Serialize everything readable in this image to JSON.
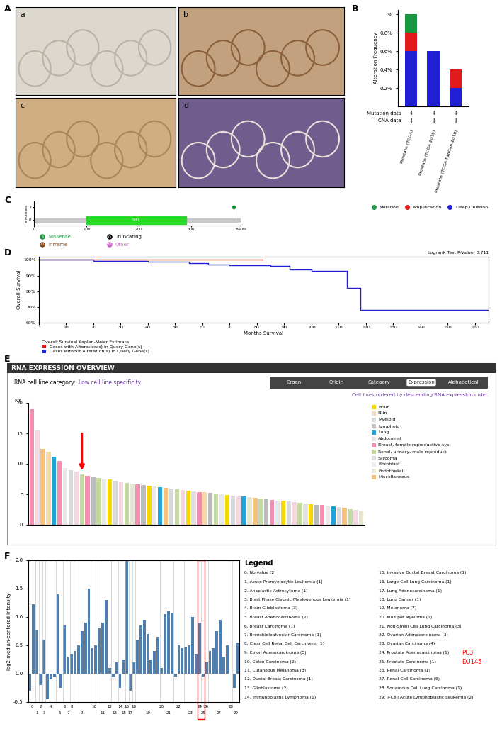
{
  "image_panel": {
    "panel": "A",
    "labels": [
      "a",
      "b",
      "c",
      "d"
    ]
  },
  "chart_data": [
    {
      "panel": "B",
      "type": "bar",
      "stacked": true,
      "y_label": "Alteration Frequency",
      "categories": [
        "Prostate (TCGA)",
        "Prostate (TCGA 2015)",
        "Prostate (TCGA PanCan 2018)"
      ],
      "series": [
        {
          "name": "Deep Deletion",
          "color": "#1f1fd6",
          "values": [
            0.6,
            0.6,
            0.2
          ]
        },
        {
          "name": "Amplification",
          "color": "#e31a1c",
          "values": [
            0.2,
            0,
            0.2
          ]
        },
        {
          "name": "Mutation",
          "color": "#1a9641",
          "values": [
            0.2,
            0,
            0
          ]
        }
      ],
      "ylim": [
        0,
        1.05
      ],
      "yticks": [
        {
          "value": 0.2,
          "label": "0.2%"
        },
        {
          "value": 0.4,
          "label": "0.4%"
        },
        {
          "value": 0.6,
          "label": "0.6%"
        },
        {
          "value": 0.8,
          "label": "0.8%"
        },
        {
          "value": 1,
          "label": "1%"
        }
      ],
      "rows": [
        {
          "label": "Mutation data",
          "marks": [
            "+",
            "+",
            "+"
          ]
        },
        {
          "label": "CNA data",
          "marks": [
            "+",
            "+",
            "+"
          ]
        }
      ]
    },
    {
      "panel": "C",
      "type": "lollipop",
      "y_label": "# Mutations",
      "xlim": [
        0,
        394
      ],
      "xticks": [
        0,
        100,
        200,
        300,
        {
          "value": 394,
          "label": "394aa"
        }
      ],
      "ylim": [
        -0.4,
        1.4
      ],
      "yticks": [
        0,
        1
      ],
      "domains": [
        {
          "name": "SH3",
          "start": 100,
          "end": 290,
          "color": "#2bd92b"
        }
      ],
      "mutations": {
        "x": [
          381
        ],
        "values": [
          1
        ],
        "color": "#1a9641"
      },
      "legend_items": [
        {
          "count": 1,
          "name": "Missense",
          "color": "#1a9641"
        },
        {
          "count": 0,
          "name": "Truncating",
          "color": "#000000"
        },
        {
          "count": 0,
          "name": "Inframe",
          "color": "#8b4513"
        },
        {
          "count": 0,
          "name": "Other",
          "color": "#cc66cc"
        }
      ]
    },
    {
      "panel": "D",
      "type": "line",
      "line_style": "steps",
      "annotation": "Logrank Test P-Value: 0.711",
      "x_label": "Months Survival",
      "y_label": "Overall Survival",
      "legend_title": "Overall Survival Kaplan-Meier Estimate",
      "xlim": [
        0,
        165
      ],
      "xticks": [
        0,
        10,
        20,
        30,
        40,
        50,
        60,
        70,
        80,
        90,
        100,
        110,
        120,
        130,
        140,
        150,
        160
      ],
      "ylim": [
        60,
        102
      ],
      "yticks": [
        {
          "value": 60,
          "label": "60%"
        },
        {
          "value": 70,
          "label": "70%"
        },
        {
          "value": 80,
          "label": "80%"
        },
        {
          "value": 90,
          "label": "90%"
        },
        {
          "value": 100,
          "label": "100%"
        }
      ],
      "series": [
        {
          "name": "Cases with Alteration(s) in Query Gene(s)",
          "color": "#e31a1c",
          "x": [
            0,
            82
          ],
          "values": [
            100,
            100
          ]
        },
        {
          "name": "Cases without Alteration(s) in Query Gene(s)",
          "color": "#1f1fd6",
          "x": [
            0,
            5,
            20,
            40,
            55,
            62,
            70,
            85,
            92,
            100,
            112,
            113,
            115,
            118,
            160,
            165
          ],
          "values": [
            100,
            100,
            99.5,
            99,
            98,
            97,
            96.5,
            96,
            94,
            93,
            93,
            82,
            82,
            68,
            68,
            68
          ]
        }
      ]
    },
    {
      "panel": "F",
      "type": "bar",
      "y_label": "log2 median-centered intensity",
      "color": "#4f7fae",
      "groups": [
        0,
        0,
        1,
        2,
        3,
        4,
        4,
        4,
        5,
        5,
        6,
        7,
        8,
        9,
        9,
        9,
        9,
        9,
        10,
        10,
        11,
        11,
        11,
        12,
        13,
        13,
        14,
        15,
        16,
        17,
        18,
        19,
        19,
        19,
        19,
        19,
        19,
        19,
        20,
        21,
        21,
        21,
        22,
        22,
        22,
        23,
        23,
        23,
        23,
        24,
        25,
        26,
        27,
        27,
        27,
        27,
        27,
        27,
        28,
        29,
        29
      ],
      "values": [
        -0.3,
        1.22,
        0.78,
        -0.2,
        0.6,
        -0.45,
        -0.1,
        -0.05,
        1.4,
        -0.25,
        0.85,
        0.3,
        0.35,
        0.4,
        0.5,
        0.75,
        0.9,
        1.5,
        0.45,
        0.5,
        0.8,
        0.9,
        1.3,
        0.1,
        -0.05,
        0.2,
        -0.25,
        0.25,
        2.0,
        -0.3,
        0.2,
        0.6,
        0.85,
        0.95,
        0.7,
        0.25,
        0.4,
        0.65,
        0.1,
        1.05,
        1.1,
        1.08,
        -0.05,
        0.5,
        0.45,
        0.48,
        0.5,
        1.0,
        0.35,
        0.9,
        -0.05,
        0.2,
        0.4,
        0.45,
        0.75,
        0.95,
        0.3,
        0.5,
        0,
        -0.25,
        0.55
      ],
      "ylim": [
        -0.5,
        2.0
      ],
      "yticks": [
        {
          "value": -0.5,
          "label": "-0.5"
        },
        {
          "value": 0,
          "label": "0.0"
        },
        {
          "value": 0.5,
          "label": "0.5"
        },
        {
          "value": 1.0,
          "label": "1.0"
        },
        {
          "value": 1.5,
          "label": "1.5"
        },
        {
          "value": 2.0,
          "label": "2.0"
        }
      ],
      "legend_title": "Legend",
      "legend_entries": [
        "0. No value (2)",
        "1. Acute Promyelocytic Leukemia (1)",
        "2. Anaplastic Astrocytoma (1)",
        "3. Blast Phase Chronic Myelogenous Leukemia (1)",
        "4. Brain Glioblastoma (3)",
        "5. Breast Adenocarcinoma (2)",
        "6. Breast Carcinoma (1)",
        "7. Bronchioloalveolar Carcinoma (1)",
        "8. Clear Cell Renal Cell Carcinoma (1)",
        "9. Colon Adenocarcinoma (5)",
        "10. Colon Carcinoma (2)",
        "11. Cutaneous Melanoma (3)",
        "12. Ductal Breast Carcinoma (1)",
        "13. Glioblastoma (2)",
        "14. Immunoblastic Lymphoma (1)",
        "15. Invasive Ductal Breast Carcinoma (1)",
        "16. Large Cell Lung Carcinoma (1)",
        "17. Lung Adenocarcinoma (1)",
        "18. Lung Cancer (1)",
        "19. Melanoma (7)",
        "20. Multiple Myeloma (1)",
        "21. Non-Small Cell Lung Carcinoma (3)",
        "22. Ovarian Adenocarcinoma (3)",
        "23. Ovarian Carcinoma (4)",
        "24. Prostate Adenocarcinoma (1)",
        "25. Prostate Carcinoma (1)",
        "26. Renal Carcinoma (1)",
        "27. Renal Cell Carcinoma (6)",
        "28. Squamous Cell Lung Carcinoma (1)",
        "29. T-Cell Acute Lymphoblastic Leukemia (2)"
      ],
      "notes": [
        "PC3",
        "DU145"
      ]
    }
  ],
  "screenshot": {
    "panel": "E",
    "header": "RNA EXPRESSION OVERVIEW",
    "subtitle_label": "RNA cell line category:",
    "subtitle_value": "Low cell line specificity",
    "buttons": [
      "Organ",
      "Origin",
      "Category",
      "Expression",
      "Alphabetical"
    ],
    "active_button": "Expression",
    "note": "Cell lines ordered by descending RNA expression order.",
    "chart": {
      "type": "bar",
      "y_label": "NX",
      "tick_labels": "y",
      "ylim": [
        0,
        20
      ],
      "yticks": [
        0,
        5,
        10,
        15,
        20
      ],
      "values": [
        19.0,
        15.5,
        12.5,
        12.0,
        11.2,
        10.5,
        9.3,
        9.0,
        8.7,
        8.3,
        8.0,
        7.9,
        7.7,
        7.5,
        7.4,
        7.2,
        7.0,
        6.9,
        6.8,
        6.6,
        6.5,
        6.4,
        6.3,
        6.2,
        6.0,
        5.9,
        5.8,
        5.7,
        5.6,
        5.5,
        5.4,
        5.3,
        5.2,
        5.1,
        5.0,
        4.9,
        4.8,
        4.7,
        4.6,
        4.5,
        4.4,
        4.3,
        4.2,
        4.1,
        4.0,
        3.9,
        3.8,
        3.7,
        3.6,
        3.5,
        3.4,
        3.3,
        3.2,
        3.1,
        3.0,
        2.9,
        2.8,
        2.6,
        2.4,
        2.2
      ],
      "colors": [
        "#f08fb0",
        "#f4d7e0",
        "#f7c27a",
        "#f7d9a8",
        "#21a4d8",
        "#f08fb0",
        "#e8e8e8",
        "#d8d8d8",
        "#f4d7e0",
        "#c4d9a0",
        "#f08fb0",
        "#bbbbbb",
        "#c4d9a0",
        "#e8e8e8",
        "#f7d900",
        "#d8d8d8",
        "#f4d7e0",
        "#c4d9a0",
        "#e8e8d0",
        "#f08fb0",
        "#bbbbbb",
        "#f7d900",
        "#e8e8e8",
        "#21a4d8",
        "#f7c27a",
        "#d8d8d8",
        "#c4d9a0",
        "#f4d7e0",
        "#f7d900",
        "#e0e0e0",
        "#f08fb0",
        "#f7d9a8",
        "#bbbbbb",
        "#c4d9a0",
        "#e8e8e8",
        "#f7d900",
        "#d8d8d8",
        "#f4d7e0",
        "#21a4d8",
        "#e8e8d0",
        "#f7c27a",
        "#c4d9a0",
        "#bbbbbb",
        "#f08fb0",
        "#e8e8e8",
        "#f7d900",
        "#d8d8d8",
        "#f4d7e0",
        "#c4d9a0",
        "#e0e0e0",
        "#f7d900",
        "#bbbbbb",
        "#f08fb0",
        "#e8e8e8",
        "#21a4d8",
        "#d8d8d8",
        "#f7c27a",
        "#c4d9a0",
        "#f4d7e0",
        "#e8e8d0"
      ],
      "legend_items": [
        {
          "name": "Brain",
          "color": "#f7d900"
        },
        {
          "name": "Skin",
          "color": "#f5dfc4"
        },
        {
          "name": "Myeloid",
          "color": "#d9d9d9"
        },
        {
          "name": "Lymphoid",
          "color": "#c0c0c0"
        },
        {
          "name": "Lung",
          "color": "#21a4d8"
        },
        {
          "name": "Abdominal",
          "color": "#e5e5e5"
        },
        {
          "name": "Breast, female reproductive sys",
          "color": "#f08fb0"
        },
        {
          "name": "Renal, urinary, male reproducti",
          "color": "#c4d9a0"
        },
        {
          "name": "Sarcoma",
          "color": "#dedede"
        },
        {
          "name": "Fibroblast",
          "color": "#eeeeee"
        },
        {
          "name": "Endothelial",
          "color": "#e8e8d0"
        },
        {
          "name": "Miscellaneous",
          "color": "#f7c27a"
        }
      ]
    }
  }
}
